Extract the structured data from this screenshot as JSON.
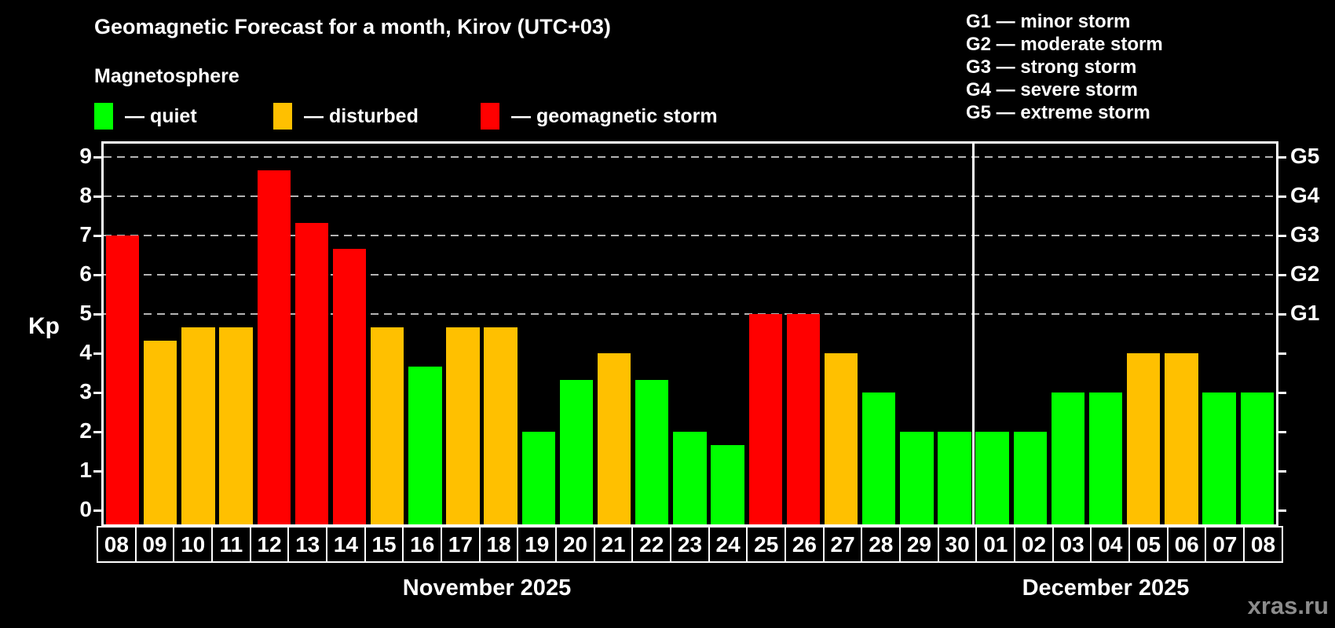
{
  "header": {
    "title": "Geomagnetic Forecast for a month, Kirov (UTC+03)",
    "subtitle": "Magnetosphere"
  },
  "legend": {
    "items": [
      {
        "name": "quiet",
        "label": "— quiet",
        "color": "#00ff00"
      },
      {
        "name": "disturbed",
        "label": "— disturbed",
        "color": "#ffc000"
      },
      {
        "name": "geomagnetic-storm",
        "label": "— geomagnetic storm",
        "color": "#ff0000"
      }
    ]
  },
  "storm_scale_legend": {
    "items": [
      "G1 — minor storm",
      "G2 — moderate storm",
      "G3 — strong storm",
      "G4 — severe storm",
      "G5 — extreme storm"
    ]
  },
  "watermark": "xras.ru",
  "chart_data": {
    "type": "bar",
    "ylabel": "Kp",
    "ylim": [
      -0.36,
      9.34
    ],
    "yticks": [
      0,
      1,
      2,
      3,
      4,
      5,
      6,
      7,
      8,
      9
    ],
    "grid_levels": [
      5,
      6,
      7,
      8,
      9
    ],
    "grid_on": true,
    "right_axis_labels": [
      {
        "kp": 5,
        "label": "G1"
      },
      {
        "kp": 6,
        "label": "G2"
      },
      {
        "kp": 7,
        "label": "G3"
      },
      {
        "kp": 8,
        "label": "G4"
      },
      {
        "kp": 9,
        "label": "G5"
      }
    ],
    "colors": {
      "quiet": "#00ff00",
      "disturbed": "#ffc000",
      "storm": "#ff0000"
    },
    "months": [
      {
        "label": "November 2025",
        "days": [
          {
            "day": "08",
            "kp": 7.0,
            "level": "storm"
          },
          {
            "day": "09",
            "kp": 4.33,
            "level": "disturbed"
          },
          {
            "day": "10",
            "kp": 4.67,
            "level": "disturbed"
          },
          {
            "day": "11",
            "kp": 4.67,
            "level": "disturbed"
          },
          {
            "day": "12",
            "kp": 8.67,
            "level": "storm"
          },
          {
            "day": "13",
            "kp": 7.33,
            "level": "storm"
          },
          {
            "day": "14",
            "kp": 6.67,
            "level": "storm"
          },
          {
            "day": "15",
            "kp": 4.67,
            "level": "disturbed"
          },
          {
            "day": "16",
            "kp": 3.67,
            "level": "quiet"
          },
          {
            "day": "17",
            "kp": 4.67,
            "level": "disturbed"
          },
          {
            "day": "18",
            "kp": 4.67,
            "level": "disturbed"
          },
          {
            "day": "19",
            "kp": 2.0,
            "level": "quiet"
          },
          {
            "day": "20",
            "kp": 3.33,
            "level": "quiet"
          },
          {
            "day": "21",
            "kp": 4.0,
            "level": "disturbed"
          },
          {
            "day": "22",
            "kp": 3.33,
            "level": "quiet"
          },
          {
            "day": "23",
            "kp": 2.0,
            "level": "quiet"
          },
          {
            "day": "24",
            "kp": 1.67,
            "level": "quiet"
          },
          {
            "day": "25",
            "kp": 5.0,
            "level": "storm"
          },
          {
            "day": "26",
            "kp": 5.0,
            "level": "storm"
          },
          {
            "day": "27",
            "kp": 4.0,
            "level": "disturbed"
          },
          {
            "day": "28",
            "kp": 3.0,
            "level": "quiet"
          },
          {
            "day": "29",
            "kp": 2.0,
            "level": "quiet"
          },
          {
            "day": "30",
            "kp": 2.0,
            "level": "quiet"
          }
        ]
      },
      {
        "label": "December 2025",
        "days": [
          {
            "day": "01",
            "kp": 2.0,
            "level": "quiet"
          },
          {
            "day": "02",
            "kp": 2.0,
            "level": "quiet"
          },
          {
            "day": "03",
            "kp": 3.0,
            "level": "quiet"
          },
          {
            "day": "04",
            "kp": 3.0,
            "level": "quiet"
          },
          {
            "day": "05",
            "kp": 4.0,
            "level": "disturbed"
          },
          {
            "day": "06",
            "kp": 4.0,
            "level": "disturbed"
          },
          {
            "day": "07",
            "kp": 3.0,
            "level": "quiet"
          },
          {
            "day": "08",
            "kp": 3.0,
            "level": "quiet"
          }
        ]
      }
    ]
  }
}
